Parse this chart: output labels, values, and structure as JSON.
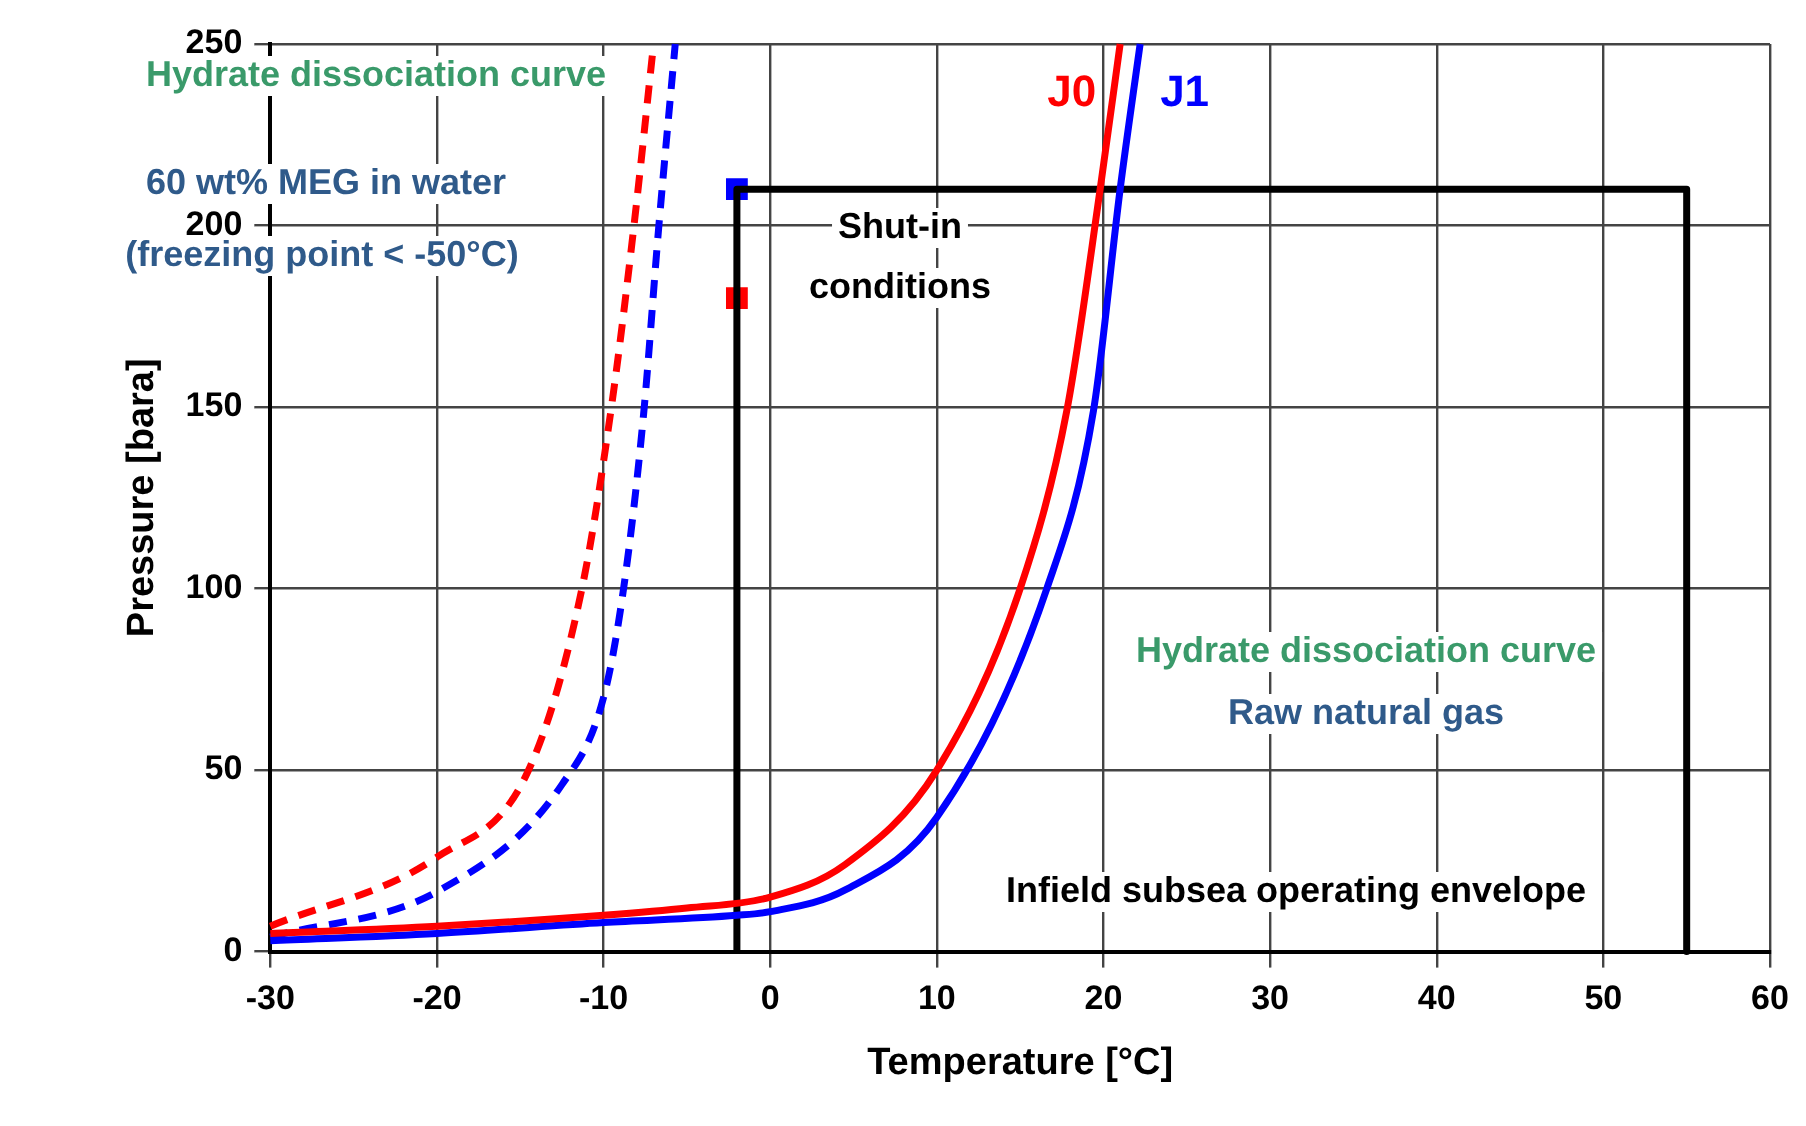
{
  "chart_data": {
    "type": "line",
    "xlabel": "Temperature [°C]",
    "ylabel": "Pressure [bara]",
    "xlim": [
      -30,
      60
    ],
    "xticks": [
      -30,
      -20,
      -10,
      0,
      10,
      20,
      30,
      40,
      50,
      60
    ],
    "ylim": [
      0,
      250
    ],
    "yticks": [
      0,
      50,
      100,
      150,
      200,
      250
    ],
    "grid": true,
    "legend": false,
    "series": [
      {
        "name": "J0",
        "color": "#ff0000",
        "type": "line",
        "marker": "none",
        "line_style": "solid",
        "x": [
          -30,
          -20,
          -10,
          -5,
          0,
          4.5,
          10,
          15,
          17.8,
          19.8,
          21
        ],
        "values": [
          5,
          7,
          10,
          12,
          15,
          24,
          50,
          100,
          149,
          210,
          250
        ]
      },
      {
        "name": "J1",
        "color": "#0000ff",
        "type": "line",
        "marker": "none",
        "line_style": "solid",
        "x": [
          -30,
          -20,
          -10,
          -2,
          0,
          4.5,
          10,
          16.6,
          19.4,
          21,
          22.2
        ],
        "values": [
          3,
          5,
          8,
          10,
          11,
          17,
          37,
          100,
          149,
          210,
          250
        ]
      },
      {
        "color": "#ff0000",
        "type": "line",
        "marker": "none",
        "line_style": "dashed",
        "x": [
          -30,
          -20,
          -14.5,
          -11.3,
          -9.5,
          -8.2,
          -7
        ],
        "values": [
          7,
          26,
          50,
          100,
          151,
          199,
          250
        ]
      },
      {
        "color": "#0000ff",
        "type": "line",
        "marker": "none",
        "line_style": "dashed",
        "x": [
          -30,
          -19.8,
          -12.5,
          -10,
          -8.8,
          -7.6,
          -6.7,
          -5.7
        ],
        "values": [
          4,
          17,
          46,
          70,
          100,
          148,
          199,
          250
        ]
      },
      {
        "color": "#000000",
        "type": "line",
        "marker": "none",
        "line_style": "solid",
        "x": [
          -2,
          -2,
          55,
          55
        ],
        "values": [
          0,
          210,
          210,
          0
        ]
      },
      {
        "color": "#0000ff",
        "type": "scatter",
        "marker": "square",
        "x": [
          -2
        ],
        "values": [
          210
        ]
      },
      {
        "color": "#ff0000",
        "type": "scatter",
        "marker": "square",
        "x": [
          -2
        ],
        "values": [
          180
        ]
      }
    ],
    "annotations": [
      "Hydrate dissociation curve",
      "60 wt% MEG in water",
      "(freezing point < -50°C)",
      "Shut-in",
      "conditions",
      "Hydrate dissociation curve",
      "Raw natural gas",
      "Infield subsea operating envelope"
    ]
  }
}
